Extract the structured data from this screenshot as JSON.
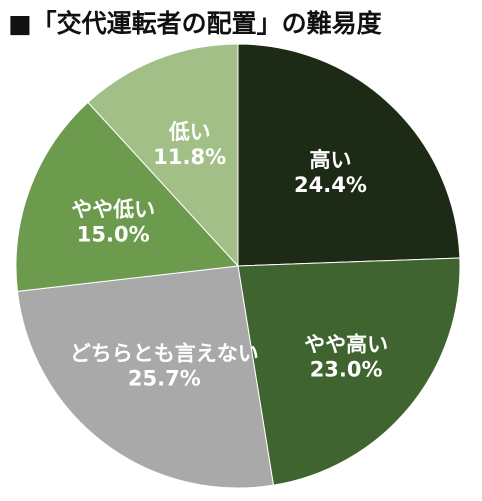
{
  "chart_data": {
    "type": "pie",
    "title": "■「交代運転者の配置」の難易度",
    "start_angle": "12 o'clock",
    "direction": "clockwise",
    "slices": [
      {
        "label": "高い",
        "value": 24.4,
        "value_text": "24.4%",
        "color": "#1d2a16"
      },
      {
        "label": "やや高い",
        "value": 23.0,
        "value_text": "23.0%",
        "color": "#3f6430"
      },
      {
        "label": "どちらとも言えない",
        "value": 25.7,
        "value_text": "25.7%",
        "color": "#a9a9a9"
      },
      {
        "label": "やや低い",
        "value": 15.0,
        "value_text": "15.0%",
        "color": "#6c9b4d"
      },
      {
        "label": "低い",
        "value": 11.8,
        "value_text": "11.8%",
        "color": "#a2bf87"
      }
    ]
  }
}
